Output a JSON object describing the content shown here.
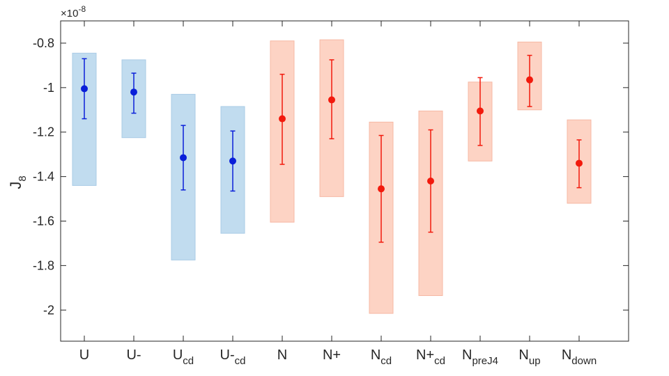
{
  "chart_data": {
    "type": "scatter",
    "ylabel": "J",
    "ylabel_sub": "8",
    "y_multiplier": "×10",
    "y_multiplier_exp": "-8",
    "ylim": [
      -2.14,
      -0.7
    ],
    "yticks": [
      -2,
      -1.8,
      -1.6,
      -1.4,
      -1.2,
      -1,
      -0.8
    ],
    "ytick_labels": [
      "-2",
      "-1.8",
      "-1.6",
      "-1.4",
      "-1.2",
      "-1",
      "-0.8"
    ],
    "grid": false,
    "colors": {
      "blue_point": "#0a1fd9",
      "blue_box": "#c1dcef",
      "red_point": "#f21a0d",
      "red_box": "#fdd3c4",
      "axis": "#262626"
    },
    "categories": [
      {
        "base": "U",
        "sub": "",
        "group": "blue",
        "value": -1.005,
        "err_low": -1.14,
        "err_high": -0.87,
        "box_low": -1.44,
        "box_high": -0.845
      },
      {
        "base": "U-",
        "sub": "",
        "group": "blue",
        "value": -1.02,
        "err_low": -1.115,
        "err_high": -0.935,
        "box_low": -1.225,
        "box_high": -0.875
      },
      {
        "base": "U",
        "sub": "cd",
        "group": "blue",
        "value": -1.315,
        "err_low": -1.46,
        "err_high": -1.17,
        "box_low": -1.775,
        "box_high": -1.03
      },
      {
        "base": "U-",
        "sub": "cd",
        "group": "blue",
        "value": -1.33,
        "err_low": -1.465,
        "err_high": -1.195,
        "box_low": -1.655,
        "box_high": -1.085
      },
      {
        "base": "N",
        "sub": "",
        "group": "red",
        "value": -1.14,
        "err_low": -1.345,
        "err_high": -0.94,
        "box_low": -1.605,
        "box_high": -0.79
      },
      {
        "base": "N+",
        "sub": "",
        "group": "red",
        "value": -1.055,
        "err_low": -1.23,
        "err_high": -0.875,
        "box_low": -1.49,
        "box_high": -0.785
      },
      {
        "base": "N",
        "sub": "cd",
        "group": "red",
        "value": -1.455,
        "err_low": -1.695,
        "err_high": -1.215,
        "box_low": -2.015,
        "box_high": -1.155
      },
      {
        "base": "N+",
        "sub": "cd",
        "group": "red",
        "value": -1.42,
        "err_low": -1.65,
        "err_high": -1.19,
        "box_low": -1.935,
        "box_high": -1.105
      },
      {
        "base": "N",
        "sub": "preJ4",
        "group": "red",
        "value": -1.105,
        "err_low": -1.26,
        "err_high": -0.955,
        "box_low": -1.33,
        "box_high": -0.975
      },
      {
        "base": "N",
        "sub": "up",
        "group": "red",
        "value": -0.965,
        "err_low": -1.085,
        "err_high": -0.855,
        "box_low": -1.1,
        "box_high": -0.795
      },
      {
        "base": "N",
        "sub": "down",
        "group": "red",
        "value": -1.34,
        "err_low": -1.45,
        "err_high": -1.235,
        "box_low": -1.52,
        "box_high": -1.145
      }
    ]
  }
}
